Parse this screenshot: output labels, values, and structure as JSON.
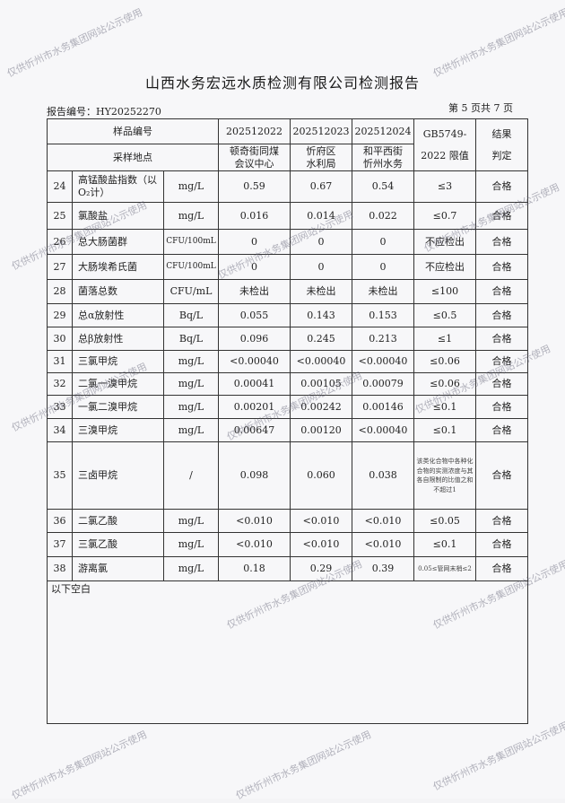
{
  "header": {
    "title": "山西水务宏远水质检测有限公司检测报告",
    "report_no": "报告编号：HY20252270",
    "page_no": "第 5 页共 7 页"
  },
  "columns": {
    "sample_id": "样品编号",
    "location": "采样地点",
    "ids": [
      "202512022",
      "202512023",
      "202512024"
    ],
    "locations": [
      [
        "顿奇街同煤",
        "会议中心"
      ],
      [
        "忻府区",
        "水利局"
      ],
      [
        "和平西街",
        "忻州水务"
      ]
    ],
    "limit": [
      "GB5749-",
      "2022 限值"
    ],
    "result": [
      "结果",
      "判定"
    ]
  },
  "rows": [
    {
      "no": "24",
      "name": "高锰酸盐指数（以O₂计）",
      "unit": "mg/L",
      "v": [
        "0.59",
        "0.67",
        "0.54"
      ],
      "limit": "≤3",
      "result": "合格"
    },
    {
      "no": "25",
      "name": "氯酸盐",
      "unit": "mg/L",
      "v": [
        "0.016",
        "0.014",
        "0.022"
      ],
      "limit": "≤0.7",
      "result": "合格"
    },
    {
      "no": "26",
      "name": "总大肠菌群",
      "unit": "CFU/100mL",
      "v": [
        "0",
        "0",
        "0"
      ],
      "limit": "不应检出",
      "result": "合格"
    },
    {
      "no": "27",
      "name": "大肠埃希氏菌",
      "unit": "CFU/100mL",
      "v": [
        "0",
        "0",
        "0"
      ],
      "limit": "不应检出",
      "result": "合格"
    },
    {
      "no": "28",
      "name": "菌落总数",
      "unit": "CFU/mL",
      "v": [
        "未检出",
        "未检出",
        "未检出"
      ],
      "limit": "≤100",
      "result": "合格"
    },
    {
      "no": "29",
      "name": "总α放射性",
      "unit": "Bq/L",
      "v": [
        "0.055",
        "0.143",
        "0.153"
      ],
      "limit": "≤0.5",
      "result": "合格"
    },
    {
      "no": "30",
      "name": "总β放射性",
      "unit": "Bq/L",
      "v": [
        "0.096",
        "0.245",
        "0.213"
      ],
      "limit": "≤1",
      "result": "合格"
    },
    {
      "no": "31",
      "name": "三氯甲烷",
      "unit": "mg/L",
      "v": [
        "<0.00040",
        "<0.00040",
        "<0.00040"
      ],
      "limit": "≤0.06",
      "result": "合格"
    },
    {
      "no": "32",
      "name": "二氯一溴甲烷",
      "unit": "mg/L",
      "v": [
        "0.00041",
        "0.00105",
        "0.00079"
      ],
      "limit": "≤0.06",
      "result": "合格"
    },
    {
      "no": "33",
      "name": "一氯二溴甲烷",
      "unit": "mg/L",
      "v": [
        "0.00201",
        "0.00242",
        "0.00146"
      ],
      "limit": "≤0.1",
      "result": "合格"
    },
    {
      "no": "34",
      "name": "三溴甲烷",
      "unit": "mg/L",
      "v": [
        "0.00647",
        "0.00120",
        "<0.00040"
      ],
      "limit": "≤0.1",
      "result": "合格"
    },
    {
      "no": "35",
      "name": "三卤甲烷",
      "unit": "/",
      "v": [
        "0.098",
        "0.060",
        "0.038"
      ],
      "limit": "该类化合物中各种化合物的实测浓度与其各自限制的比值之和不超过1",
      "result": "合格"
    },
    {
      "no": "36",
      "name": "二氯乙酸",
      "unit": "mg/L",
      "v": [
        "<0.010",
        "<0.010",
        "<0.010"
      ],
      "limit": "≤0.05",
      "result": "合格"
    },
    {
      "no": "37",
      "name": "三氯乙酸",
      "unit": "mg/L",
      "v": [
        "<0.010",
        "<0.010",
        "<0.010"
      ],
      "limit": "≤0.1",
      "result": "合格"
    },
    {
      "no": "38",
      "name": "游离氯",
      "unit": "mg/L",
      "v": [
        "0.18",
        "0.29",
        "0.39"
      ],
      "limit": "0.05≤管网末梢≤2",
      "result": "合格"
    }
  ],
  "footer_note": "以下空白",
  "watermark": "仅供忻州市水务集团网站公示使用"
}
